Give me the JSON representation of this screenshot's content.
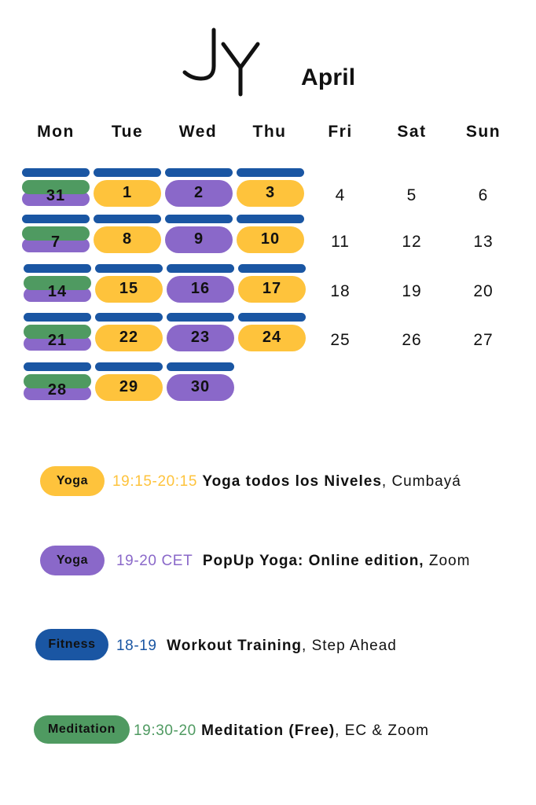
{
  "logo": {
    "text": "JY"
  },
  "month": "April",
  "colors": {
    "yoga_studio": "#fec33c",
    "yoga_online": "#8a68c9",
    "fitness": "#1a56a3",
    "meditation": "#4f9a61"
  },
  "weekdays": [
    "Mon",
    "Tue",
    "Wed",
    "Thu",
    "Fri",
    "Sat",
    "Sun"
  ],
  "weeks": [
    {
      "mon": "31",
      "tue": "1",
      "wed": "2",
      "thu": "3",
      "fri": "4",
      "sat": "5",
      "sun": "6"
    },
    {
      "mon": "7",
      "tue": "8",
      "wed": "9",
      "thu": "10",
      "fri": "11",
      "sat": "12",
      "sun": "13"
    },
    {
      "mon": "14",
      "tue": "15",
      "wed": "16",
      "thu": "17",
      "fri": "18",
      "sat": "19",
      "sun": "20"
    },
    {
      "mon": "21",
      "tue": "22",
      "wed": "23",
      "thu": "24",
      "fri": "25",
      "sat": "26",
      "sun": "27"
    },
    {
      "mon": "28",
      "tue": "29",
      "wed": "30"
    }
  ],
  "legend": [
    {
      "tag": "Yoga",
      "time": "19:15-20:15",
      "title": "Yoga todos los Niveles",
      "location": ", Cumbayá"
    },
    {
      "tag": "Yoga",
      "time": "19-20 CET",
      "title": "PopUp Yoga: Online edition,",
      "location": " Zoom"
    },
    {
      "tag": "Fitness",
      "time": "18-19",
      "title": "Workout Training",
      "location": ", Step Ahead"
    },
    {
      "tag": "Meditation",
      "time": "19:30-20",
      "title": "Meditation (Free)",
      "location": ", EC & Zoom"
    }
  ]
}
